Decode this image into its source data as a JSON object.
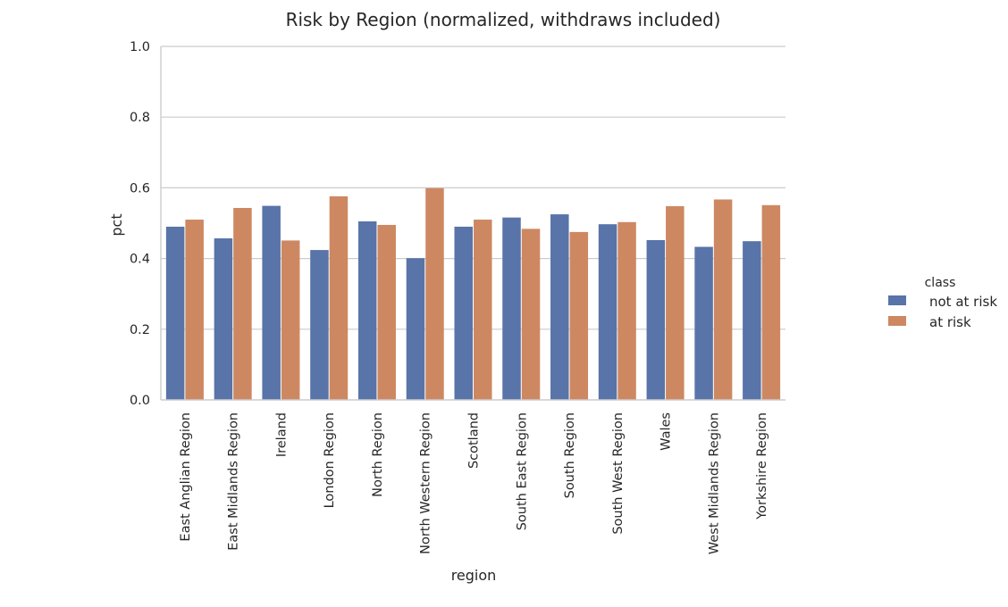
{
  "chart_data": {
    "type": "bar",
    "title": "Risk by Region (normalized, withdraws included)",
    "xlabel": "region",
    "ylabel": "pct",
    "ylim": [
      0,
      1.0
    ],
    "yticks": [
      "0.0",
      "0.2",
      "0.4",
      "0.6",
      "0.8",
      "1.0"
    ],
    "grid": "horizontal",
    "legend_title": "class",
    "legend_position": "right",
    "categories": [
      "East Anglian Region",
      "East Midlands Region",
      "Ireland",
      "London Region",
      "North Region",
      "North Western Region",
      "Scotland",
      "South East Region",
      "South Region",
      "South West Region",
      "Wales",
      "West Midlands Region",
      "Yorkshire Region"
    ],
    "series": [
      {
        "name": "not at risk",
        "color": "#5874a8",
        "values": [
          0.49,
          0.457,
          0.549,
          0.424,
          0.505,
          0.401,
          0.49,
          0.516,
          0.525,
          0.497,
          0.452,
          0.433,
          0.449
        ]
      },
      {
        "name": "at risk",
        "color": "#cd8862",
        "values": [
          0.51,
          0.543,
          0.451,
          0.576,
          0.495,
          0.599,
          0.51,
          0.484,
          0.475,
          0.503,
          0.548,
          0.567,
          0.551
        ]
      }
    ]
  }
}
